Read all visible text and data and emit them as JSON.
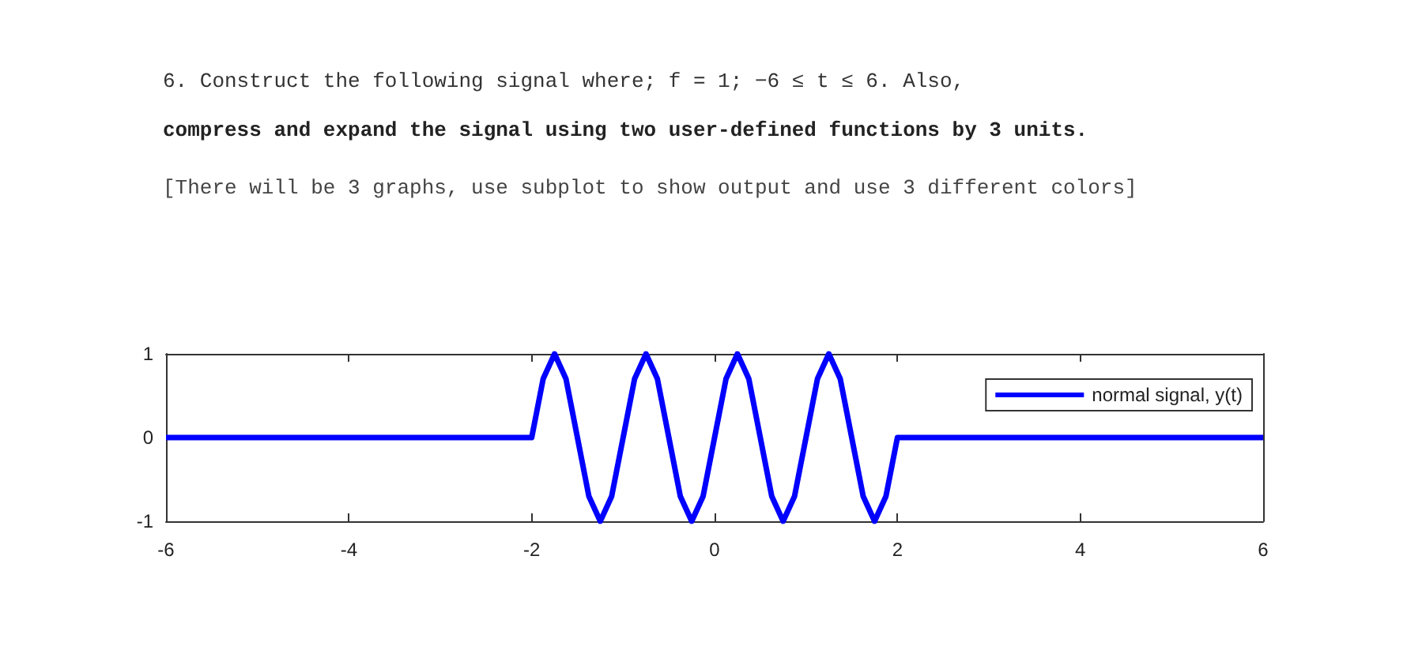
{
  "chart_data": {
    "type": "line",
    "title": "6. Construct the following signal where; f = 1; −6 ≤ t ≤ 6. Also,",
    "subtitle": "compress and expand the signal using two user-defined functions by 3 units.",
    "annotations": [
      "[There will be 3 graphs, use subplot to show output and use 3 different colors]"
    ],
    "x": [
      -6,
      -2,
      -1.875,
      -1.75,
      -1.625,
      -1.5,
      -1.375,
      -1.25,
      -1.125,
      -1,
      -0.875,
      -0.75,
      -0.625,
      -0.5,
      -0.375,
      -0.25,
      -0.125,
      0,
      0.125,
      0.25,
      0.375,
      0.5,
      0.625,
      0.75,
      0.875,
      1,
      1.125,
      1.25,
      1.375,
      1.5,
      1.625,
      1.75,
      1.875,
      2,
      6
    ],
    "series": [
      {
        "name": "normal signal, y(t)",
        "color": "#0000ff",
        "values": [
          0,
          0,
          0.7,
          1,
          0.7,
          0,
          -0.7,
          -1,
          -0.7,
          0,
          0.7,
          1,
          0.7,
          0,
          -0.7,
          -1,
          -0.7,
          0,
          0.7,
          1,
          0.7,
          0,
          -0.7,
          -1,
          -0.7,
          0,
          0.7,
          1,
          0.7,
          0,
          -0.7,
          -1,
          -0.7,
          0,
          0
        ]
      }
    ],
    "xlim": [
      -6,
      6
    ],
    "xticks": [
      -6,
      -4,
      -2,
      0,
      2,
      4,
      6
    ],
    "ylim": [
      -1,
      1
    ],
    "yticks": [
      -1,
      0,
      1
    ],
    "legend": "top right",
    "grid": false,
    "marker": "none",
    "line_style": "solid"
  }
}
